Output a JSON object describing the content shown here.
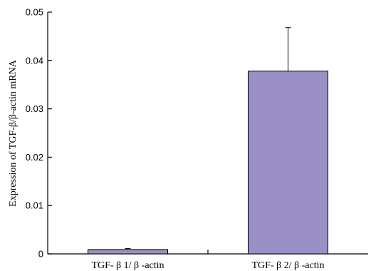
{
  "chart_data": {
    "type": "bar",
    "categories": [
      "TGF- β 1/ β -actin",
      "TGF- β 2/ β -actin"
    ],
    "values": [
      0.0009,
      0.0378
    ],
    "errors": [
      0.0002,
      0.009
    ],
    "ylabel": "Expression of TGF-β/β-actin mRNA",
    "xlabel": "",
    "ylim": [
      0,
      0.05
    ],
    "yticks": [
      0,
      0.01,
      0.02,
      0.03,
      0.04,
      0.05
    ],
    "ytick_labels": [
      "0",
      "0.01",
      "0.02",
      "0.03",
      "0.04",
      "0.05"
    ],
    "bar_color": "#9b90c5",
    "grid": false,
    "legend": "none"
  }
}
